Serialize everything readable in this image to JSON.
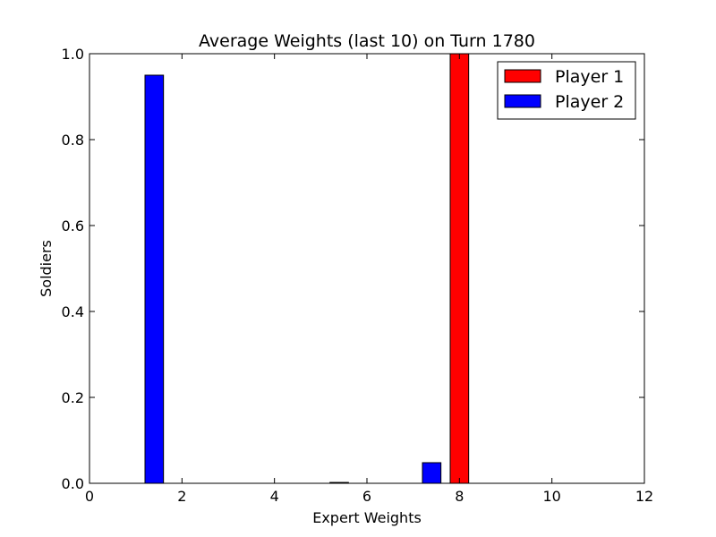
{
  "chart_data": {
    "type": "bar",
    "title": "Average Weights (last 10) on Turn 1780",
    "xlabel": "Expert Weights",
    "ylabel": "Soldiers",
    "xlim": [
      0,
      12
    ],
    "ylim": [
      0,
      1.0
    ],
    "xticks": [
      "0",
      "2",
      "4",
      "6",
      "8",
      "10",
      "12"
    ],
    "yticks": [
      "0.0",
      "0.2",
      "0.4",
      "0.6",
      "0.8",
      "1.0"
    ],
    "grid": false,
    "legend_position": "top-right",
    "bar_width": 0.4,
    "series": [
      {
        "name": "Player 1",
        "color": "#ff0000",
        "x": [
          0.8,
          1.8,
          2.8,
          3.8,
          4.8,
          5.8,
          6.8,
          7.8,
          8.8,
          9.8,
          10.8
        ],
        "values": [
          0,
          0,
          0,
          0,
          0,
          0,
          0,
          1.0,
          0,
          0,
          0
        ]
      },
      {
        "name": "Player 2",
        "color": "#0000ff",
        "x": [
          0.2,
          1.2,
          2.2,
          3.2,
          4.2,
          5.2,
          6.2,
          7.2,
          8.2,
          9.2,
          10.2
        ],
        "values": [
          0,
          0.95,
          0,
          0,
          0,
          0.002,
          0,
          0.048,
          0,
          0,
          0
        ]
      }
    ]
  }
}
